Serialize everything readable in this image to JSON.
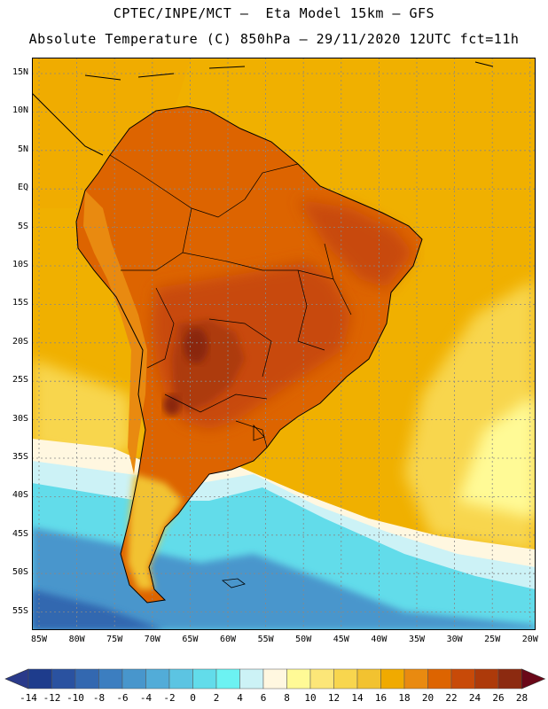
{
  "title": {
    "line1": "CPTEC/INPE/MCT –  Eta Model 15km – GFS",
    "line2": "Absolute Temperature (C) 850hPa – 29/11/2020 12UTC fct=11h"
  },
  "map": {
    "lat_labels": [
      "15N",
      "10N",
      "5N",
      "EQ",
      "5S",
      "10S",
      "15S",
      "20S",
      "25S",
      "30S",
      "35S",
      "40S",
      "45S",
      "50S",
      "55S"
    ],
    "lon_labels": [
      "85W",
      "80W",
      "75W",
      "70W",
      "65W",
      "60W",
      "55W",
      "50W",
      "45W",
      "40W",
      "35W",
      "30W",
      "25W",
      "20W"
    ],
    "ocean_color": "#f0b000",
    "warm_land_color": "#d55a10",
    "hot_core_color": "#8a2510",
    "cold_water_color": "#58d0e8",
    "coastline_color": "#000000",
    "grid_color": "#888888"
  },
  "colorbar": {
    "labels": [
      "-14",
      "-12",
      "-10",
      "-8",
      "-6",
      "-4",
      "-2",
      "0",
      "2",
      "4",
      "6",
      "8",
      "10",
      "12",
      "14",
      "16",
      "18",
      "20",
      "22",
      "24",
      "26",
      "28"
    ],
    "under_color": "#2a3a8a",
    "over_color": "#6a0818",
    "colors": [
      "#1e3c8c",
      "#2a52a0",
      "#3368b0",
      "#3c7ec0",
      "#4896cc",
      "#52acd8",
      "#5cc4e2",
      "#62dcea",
      "#6cf2f2",
      "#ccf2f6",
      "#fff7e0",
      "#fffa96",
      "#fce678",
      "#f8d64e",
      "#f2c230",
      "#f0aa00",
      "#e98a10",
      "#dd6400",
      "#c84a08",
      "#ad3a0a",
      "#8c2a10"
    ]
  }
}
